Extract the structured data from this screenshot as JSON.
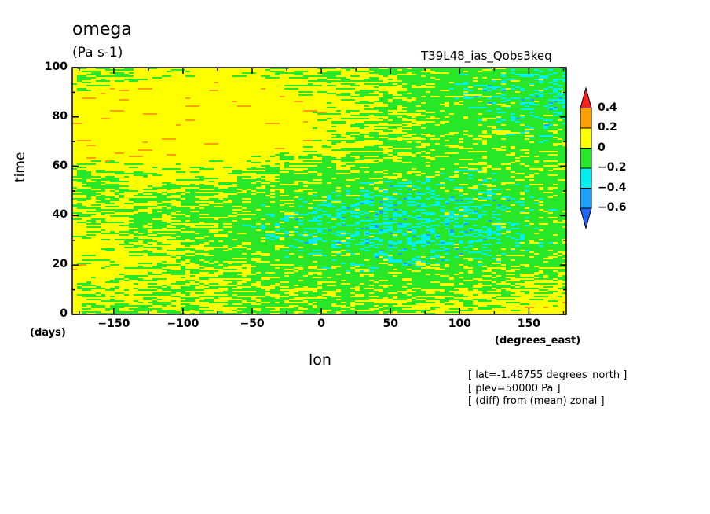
{
  "title": "omega",
  "units": "(Pa s-1)",
  "run_name": "T39L48_ias_Qobs3keq",
  "annotations": [
    "[ lat=-1.48755 degrees_north ]",
    "[ plev=50000 Pa ]",
    "[ (diff) from (mean) zonal ]"
  ],
  "colors": {
    "c_lt_m06": "#1e64ff",
    "c_m06_m04": "#1ea0ff",
    "c_m04_m02": "#00f0f0",
    "c_m02_0": "#28e628",
    "c_0_02": "#ffff00",
    "c_02_04": "#ffa000",
    "c_gt_04": "#ff1e1e"
  },
  "chart_data": {
    "type": "heatmap",
    "title": "omega",
    "xlabel": "lon",
    "xunit": "(degrees_east)",
    "ylabel": "time",
    "yunit": "(days)",
    "xlim": [
      -180,
      177
    ],
    "ylim": [
      0,
      100
    ],
    "xticks": [
      -150,
      -100,
      -50,
      0,
      50,
      100,
      150
    ],
    "yticks": [
      0,
      20,
      40,
      60,
      80,
      100
    ],
    "xtick_labels": [
      "−150",
      "−100",
      "−50",
      "0",
      "50",
      "100",
      "150"
    ],
    "ytick_labels": [
      "0",
      "20",
      "40",
      "60",
      "80",
      "100"
    ],
    "colorbar": {
      "levels": [
        -0.6,
        -0.4,
        -0.2,
        0,
        0.2,
        0.4
      ],
      "labels": [
        "−0.6",
        "−0.4",
        "−0.2",
        "0",
        "0.2",
        "0.4"
      ],
      "colors": [
        "#1e64ff",
        "#1ea0ff",
        "#00f0f0",
        "#28e628",
        "#ffff00",
        "#ffa000",
        "#ff1e1e"
      ],
      "extend": "both"
    }
  }
}
